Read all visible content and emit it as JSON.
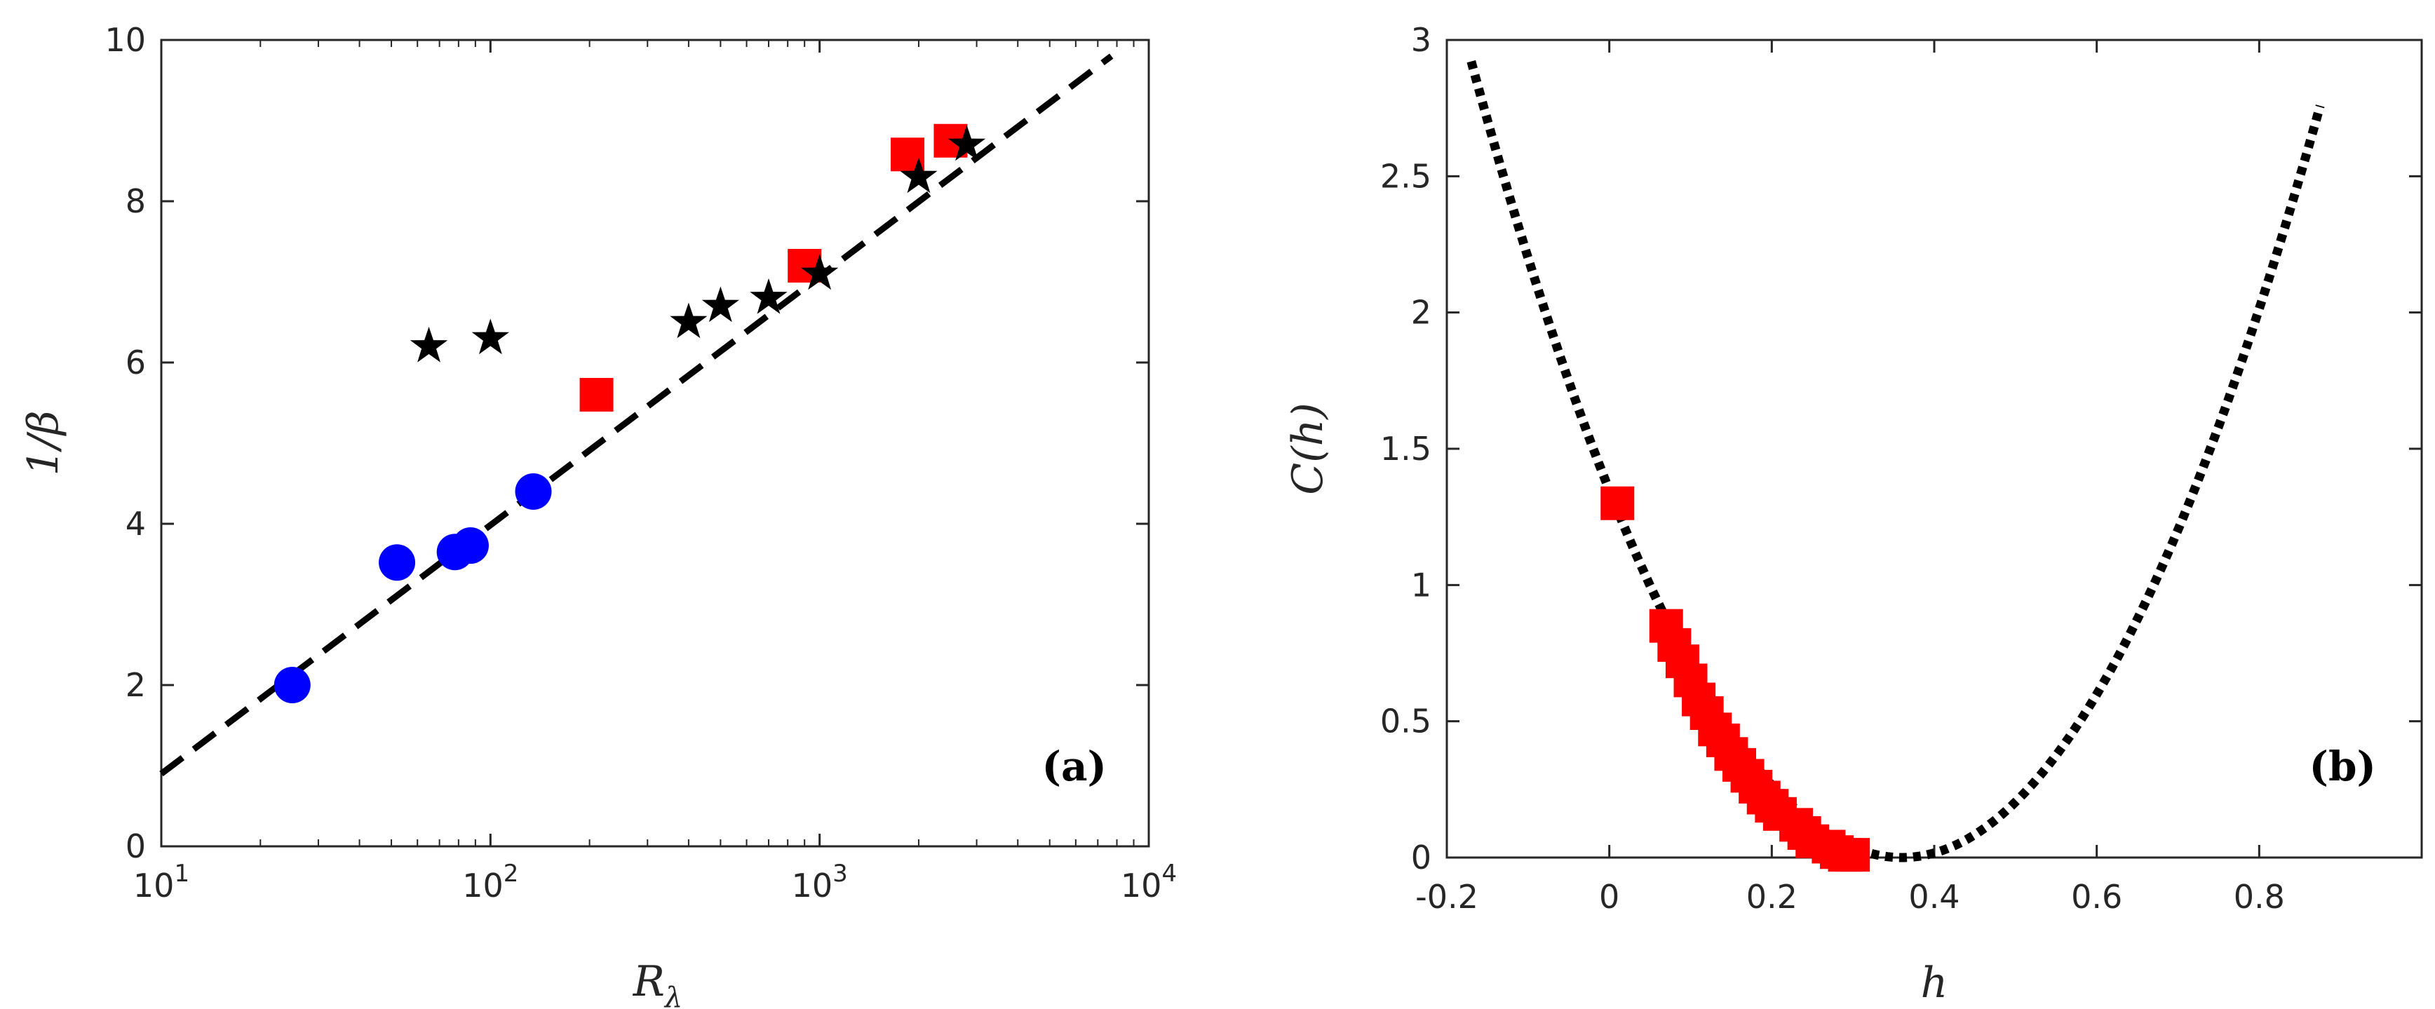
{
  "chart_data": [
    {
      "type": "scatter",
      "panel": "a",
      "panel_label": "(a)",
      "xlabel": "R_λ",
      "xlabel_base": "R",
      "xlabel_sub": "λ",
      "ylabel": "1/β",
      "xscale": "log",
      "xlim": [
        10,
        10000
      ],
      "ylim": [
        0,
        10
      ],
      "xticks": [
        10,
        100,
        1000,
        10000
      ],
      "xtick_labels": [
        {
          "base": "10",
          "exp": "1"
        },
        {
          "base": "10",
          "exp": "2"
        },
        {
          "base": "10",
          "exp": "3"
        },
        {
          "base": "10",
          "exp": "4"
        }
      ],
      "yticks": [
        0,
        2,
        4,
        6,
        8,
        10
      ],
      "ytick_labels": [
        "0",
        "2",
        "4",
        "6",
        "8",
        "10"
      ],
      "grid": false,
      "series": [
        {
          "name": "circles",
          "marker": "circle",
          "color": "#0000ff",
          "points": [
            [
              25,
              2.0
            ],
            [
              52,
              3.52
            ],
            [
              78,
              3.65
            ],
            [
              87,
              3.73
            ],
            [
              135,
              4.4
            ]
          ]
        },
        {
          "name": "squares",
          "marker": "square",
          "color": "#ff0000",
          "points": [
            [
              210,
              5.6
            ],
            [
              900,
              7.2
            ],
            [
              1850,
              8.58
            ],
            [
              2500,
              8.75
            ]
          ]
        },
        {
          "name": "stars",
          "marker": "star",
          "color": "#000000",
          "points": [
            [
              65,
              6.2
            ],
            [
              100,
              6.3
            ],
            [
              400,
              6.5
            ],
            [
              500,
              6.7
            ],
            [
              700,
              6.8
            ],
            [
              1000,
              7.1
            ],
            [
              2000,
              8.3
            ],
            [
              2800,
              8.7
            ]
          ]
        },
        {
          "name": "fit",
          "line": "dashed",
          "color": "#000000",
          "points": [
            [
              10,
              0.9
            ],
            [
              7700,
              9.8
            ]
          ]
        }
      ]
    },
    {
      "type": "scatter",
      "panel": "b",
      "panel_label": "(b)",
      "xlabel": "h",
      "ylabel": "C(h)",
      "xlim": [
        -0.2,
        1.0
      ],
      "ylim": [
        0,
        3
      ],
      "xticks": [
        -0.2,
        0,
        0.2,
        0.4,
        0.6,
        0.8
      ],
      "xtick_labels": [
        "-0.2",
        "0",
        "0.2",
        "0.4",
        "0.6",
        "0.8"
      ],
      "yticks": [
        0,
        0.5,
        1,
        1.5,
        2,
        2.5,
        3
      ],
      "ytick_labels": [
        "0",
        "0.5",
        "1",
        "1.5",
        "2",
        "2.5",
        "3"
      ],
      "grid": false,
      "curve": {
        "name": "parabola",
        "line": "dotted",
        "color": "#000000",
        "h0": 0.36,
        "a": 10.4,
        "xrange": [
          -0.17,
          0.875
        ]
      },
      "series": [
        {
          "name": "squares",
          "marker": "square",
          "color": "#ff0000",
          "points": [
            [
              0.01,
              1.3
            ],
            [
              0.07,
              0.85
            ],
            [
              0.08,
              0.78
            ],
            [
              0.09,
              0.72
            ],
            [
              0.1,
              0.65
            ],
            [
              0.11,
              0.58
            ],
            [
              0.12,
              0.53
            ],
            [
              0.13,
              0.47
            ],
            [
              0.14,
              0.43
            ],
            [
              0.15,
              0.38
            ],
            [
              0.16,
              0.34
            ],
            [
              0.17,
              0.3
            ],
            [
              0.18,
              0.26
            ],
            [
              0.19,
              0.22
            ],
            [
              0.2,
              0.19
            ],
            [
              0.21,
              0.16
            ],
            [
              0.23,
              0.12
            ],
            [
              0.24,
              0.09
            ],
            [
              0.25,
              0.06
            ],
            [
              0.27,
              0.04
            ],
            [
              0.28,
              0.02
            ],
            [
              0.29,
              0.01
            ],
            [
              0.3,
              0.01
            ]
          ]
        }
      ]
    }
  ]
}
